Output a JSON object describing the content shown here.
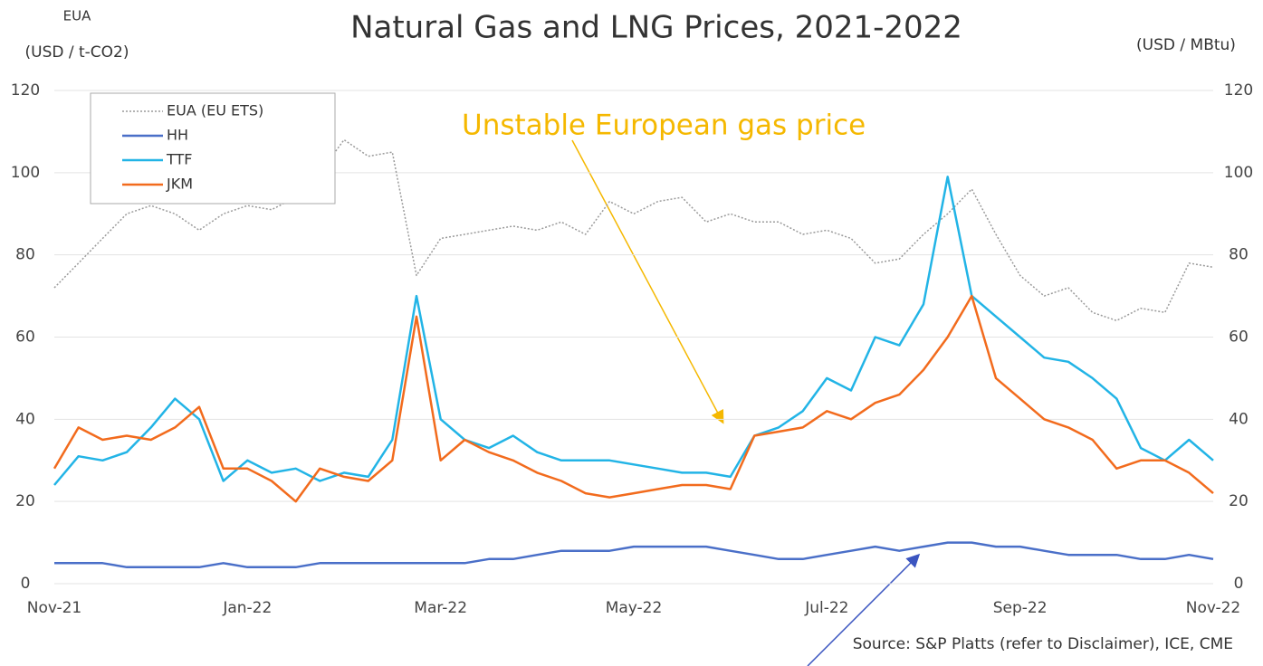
{
  "chart_data": {
    "type": "line",
    "title": "Natural Gas and LNG Prices, 2021-2022",
    "y_axis_label_top": "EUA",
    "y_axis_label": "(USD / t-CO2)",
    "y2_axis_label": "(USD / MBtu)",
    "source": "Source: S&P Platts (refer to Disclaimer), ICE, CME",
    "annotation": "Unstable  European gas price",
    "categories": [
      "Nov-21",
      null,
      null,
      null,
      null,
      null,
      null,
      null,
      "Jan-22",
      null,
      null,
      null,
      null,
      null,
      null,
      null,
      "Mar-22",
      null,
      null,
      null,
      null,
      null,
      null,
      null,
      "May-22",
      null,
      null,
      null,
      null,
      null,
      null,
      null,
      "Jul-22",
      null,
      null,
      null,
      null,
      null,
      null,
      null,
      "Sep-22",
      null,
      null,
      null,
      null,
      null,
      null,
      null,
      "Nov-22"
    ],
    "ylim": [
      0,
      120
    ],
    "yticks": [
      0,
      20,
      40,
      60,
      80,
      100,
      120
    ],
    "y2lim": [
      0,
      120
    ],
    "y2ticks": [
      0,
      20,
      40,
      60,
      80,
      100,
      120
    ],
    "grid": true,
    "legend": "upper left",
    "series": [
      {
        "name": "EUA (EU ETS)",
        "color": "#9a9a9a",
        "dash": true,
        "values": [
          72,
          78,
          84,
          90,
          92,
          90,
          86,
          90,
          92,
          91,
          94,
          100,
          108,
          104,
          105,
          75,
          84,
          85,
          86,
          87,
          86,
          88,
          85,
          93,
          90,
          93,
          94,
          88,
          90,
          88,
          88,
          85,
          86,
          84,
          78,
          79,
          85,
          90,
          96,
          85,
          75,
          70,
          72,
          66,
          64,
          67,
          66,
          78,
          77
        ]
      },
      {
        "name": "HH",
        "color": "#4a6fc8",
        "axis": "y2",
        "values": [
          5,
          5,
          5,
          4,
          4,
          4,
          4,
          5,
          4,
          4,
          4,
          5,
          5,
          5,
          5,
          5,
          5,
          5,
          6,
          6,
          7,
          8,
          8,
          8,
          9,
          9,
          9,
          9,
          8,
          7,
          6,
          6,
          7,
          8,
          9,
          8,
          9,
          10,
          10,
          9,
          9,
          8,
          7,
          7,
          7,
          6,
          6,
          7,
          6
        ]
      },
      {
        "name": "TTF",
        "color": "#22b4e6",
        "axis": "y2",
        "values": [
          24,
          31,
          30,
          32,
          38,
          45,
          40,
          25,
          30,
          27,
          28,
          25,
          27,
          26,
          35,
          70,
          40,
          35,
          33,
          36,
          32,
          30,
          30,
          30,
          29,
          28,
          27,
          27,
          26,
          36,
          38,
          42,
          50,
          47,
          60,
          58,
          68,
          99,
          70,
          65,
          60,
          55,
          54,
          50,
          45,
          33,
          30,
          35,
          30
        ]
      },
      {
        "name": "JKM",
        "color": "#f26b1d",
        "axis": "y2",
        "values": [
          28,
          38,
          35,
          36,
          35,
          38,
          43,
          28,
          28,
          25,
          20,
          28,
          26,
          25,
          30,
          65,
          30,
          35,
          32,
          30,
          27,
          25,
          22,
          21,
          22,
          23,
          24,
          24,
          23,
          36,
          37,
          38,
          42,
          40,
          44,
          46,
          52,
          60,
          70,
          50,
          45,
          40,
          38,
          35,
          28,
          30,
          30,
          27,
          22
        ]
      }
    ]
  }
}
